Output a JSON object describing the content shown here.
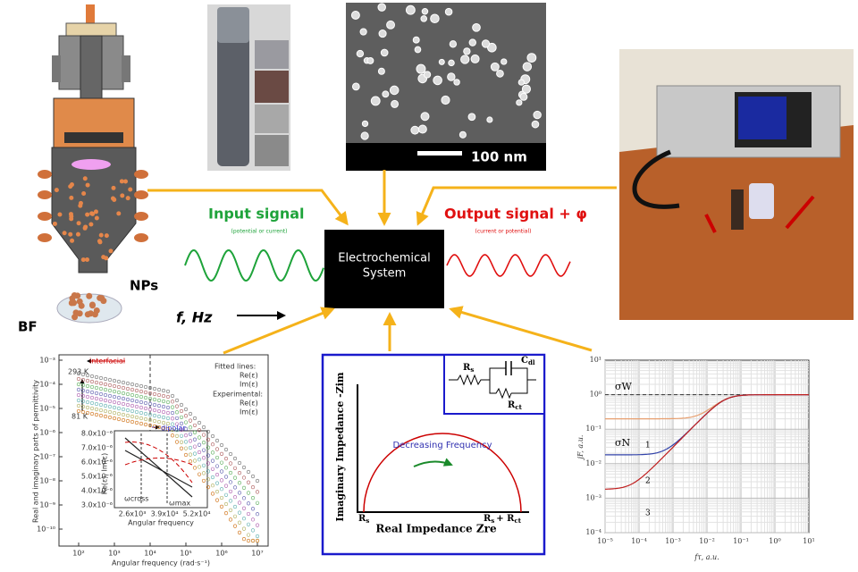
{
  "reactor": {
    "label_nps": "NPs",
    "label_bf": "BF"
  },
  "sem": {
    "scale_bar": "100 nm"
  },
  "input": {
    "title": "Input signal",
    "note": "(potential or current)"
  },
  "output": {
    "title": "Output signal + φ",
    "note": "(current or potential)"
  },
  "system": {
    "line1": "Electrochemical",
    "line2": "System"
  },
  "frequency": {
    "label": "f, Hz"
  },
  "permittivity_plot": {
    "y_label": "Real and imaginary parts of permittivity",
    "x_label": "Angular frequency (rad·s⁻¹)",
    "yticks": [
      "10⁻³",
      "10⁻⁴",
      "10⁻⁵",
      "10⁻⁶",
      "10⁻⁷",
      "10⁻⁸",
      "10⁻⁹",
      "10⁻¹⁰"
    ],
    "xticks": [
      "10²",
      "10³",
      "10⁴",
      "10⁵",
      "10⁶",
      "10⁷"
    ],
    "interfacial": "interfacial",
    "dipolar": "dipolar",
    "t_high": "293 K",
    "t_low": "81 K",
    "legend": [
      "Fitted lines:",
      "Re(ε)",
      "Im(ε)",
      "Experimental:",
      "Re(ε)",
      "Im(ε)"
    ],
    "inset": {
      "y_label": "Re(ε), Im(ε)",
      "x_label": "Angular frequency",
      "yticks": [
        "8.0x10⁻⁶",
        "7.0x10⁻⁶",
        "6.0x10⁻⁶",
        "5.0x10⁻⁶",
        "4.0x10⁻⁶",
        "3.0x10⁻⁶"
      ],
      "xticks": [
        "2.6x10³",
        "3.9x10⁴",
        "5.2x10⁴"
      ],
      "w_cross": "ωcross",
      "w_max": "ωmax"
    }
  },
  "nyquist": {
    "y_label": "Imaginary Impedance -Zim",
    "x_label": "Real Impedance Zre",
    "arrow_label": "Decreasing Frequency",
    "rs": {
      "main": "R",
      "sub": "s"
    },
    "rs_rct": {
      "main": "R",
      "sub": "s",
      "plus": "+ R",
      "sub2": "ct"
    },
    "circuit": {
      "rs": {
        "main": "R",
        "sub": "s"
      },
      "cdl": {
        "main": "C",
        "sub": "dl"
      },
      "rct": {
        "main": "R",
        "sub": "ct"
      }
    }
  },
  "jf_plot": {
    "y_label": "jF, a.u.",
    "x_label": "fτ, a.u.",
    "yticks": [
      "10¹",
      "10⁰",
      "10⁻¹",
      "10⁻²",
      "10⁻³",
      "10⁻⁴"
    ],
    "xticks": [
      "10⁻⁵",
      "10⁻⁴",
      "10⁻³",
      "10⁻²",
      "10⁻¹",
      "10⁰",
      "10¹"
    ],
    "sigma_w": "σW",
    "sigma_n": "σN",
    "curves": [
      "1",
      "2",
      "3"
    ]
  }
}
